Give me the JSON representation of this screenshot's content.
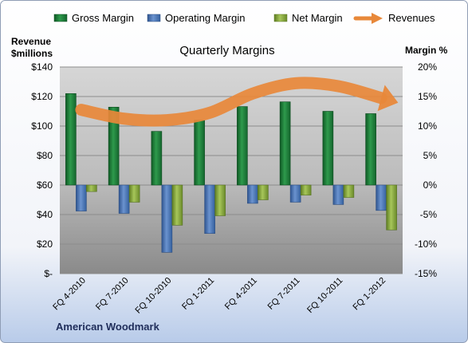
{
  "chart_data": {
    "type": "bar",
    "title": "Quarterly Margins",
    "footer": "American Woodmark",
    "left_axis": {
      "title_line1": "Revenue",
      "title_line2": "$millions",
      "ylim": [
        0,
        140
      ],
      "ticks": [
        0,
        20,
        40,
        60,
        80,
        100,
        120,
        140
      ],
      "tick_labels": [
        "$-",
        "$20",
        "$40",
        "$60",
        "$80",
        "$100",
        "$120",
        "$140"
      ]
    },
    "right_axis": {
      "title": "Margin %",
      "ylim": [
        -15,
        20
      ],
      "ticks": [
        -15,
        -10,
        -5,
        0,
        5,
        10,
        15,
        20
      ],
      "tick_labels": [
        "-15%",
        "-10%",
        "-5%",
        "0%",
        "5%",
        "10%",
        "15%",
        "20%"
      ]
    },
    "categories": [
      "FQ 4-2010",
      "FQ 7-2010",
      "FQ 10-2010",
      "FQ 1-2011",
      "FQ 4-2011",
      "FQ 7-2011",
      "FQ 10-2011",
      "FQ 1-2012"
    ],
    "series": [
      {
        "name": "Gross Margin",
        "axis": "right",
        "color": "#1e7a3a",
        "values": [
          15.5,
          13.2,
          9.1,
          11.0,
          13.3,
          14.1,
          12.5,
          12.1
        ]
      },
      {
        "name": "Operating Margin",
        "axis": "right",
        "color": "#4a74b4",
        "values": [
          -4.4,
          -4.8,
          -11.4,
          -8.2,
          -3.1,
          -2.9,
          -3.3,
          -4.3
        ]
      },
      {
        "name": "Net Margin",
        "axis": "right",
        "color": "#86a83c",
        "values": [
          -1.1,
          -2.9,
          -6.8,
          -5.2,
          -2.5,
          -1.7,
          -2.1,
          -7.6
        ]
      },
      {
        "name": "Revenues",
        "axis": "left",
        "color": "#e8883a",
        "type": "arrow-line",
        "values": [
          111,
          105,
          104,
          109,
          122,
          129,
          127,
          119
        ]
      }
    ],
    "grid": true,
    "legend_position": "top"
  }
}
